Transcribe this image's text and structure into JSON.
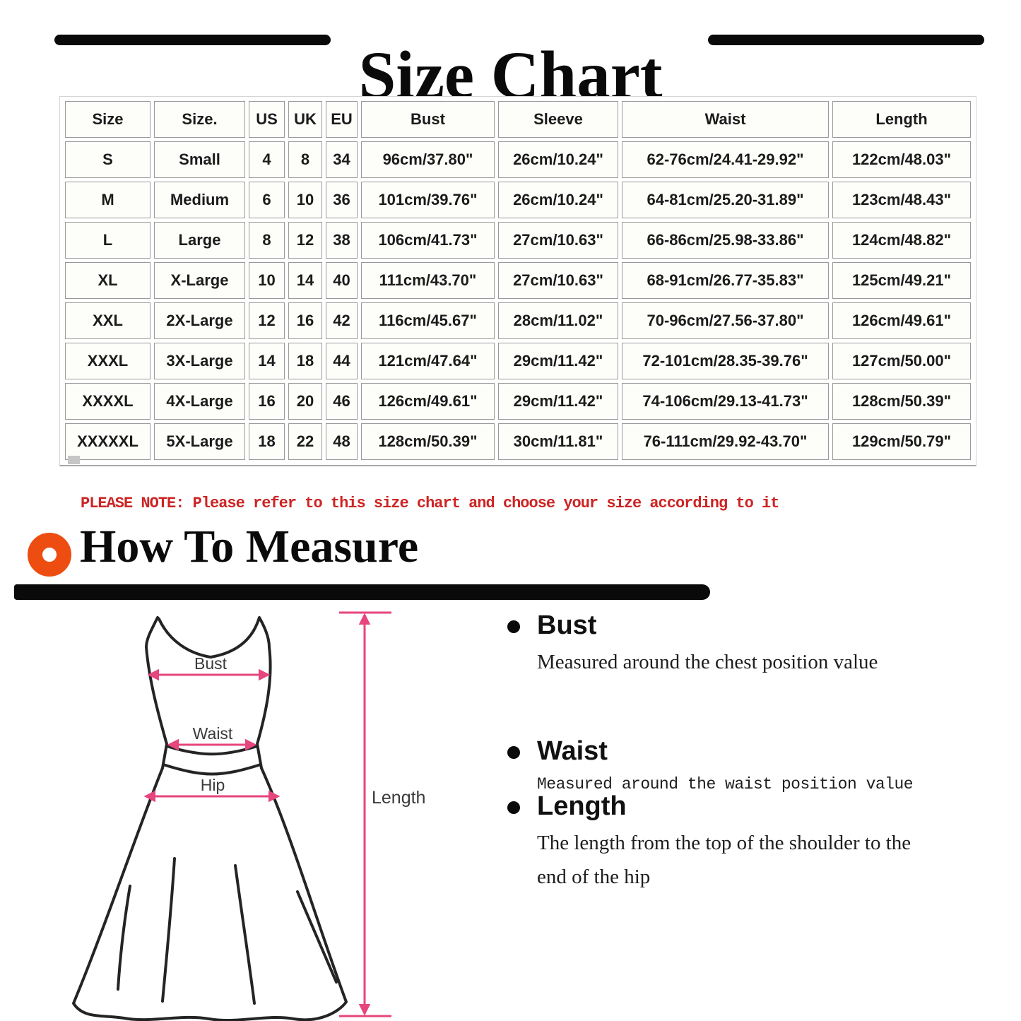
{
  "page": {
    "title": "Size Chart"
  },
  "table": {
    "columns": [
      "Size",
      "Size.",
      "US",
      "UK",
      "EU",
      "Bust",
      "Sleeve",
      "Waist",
      "Length"
    ],
    "rows": [
      [
        "S",
        "Small",
        "4",
        "8",
        "34",
        "96cm/37.80\"",
        "26cm/10.24\"",
        "62-76cm/24.41-29.92\"",
        "122cm/48.03\""
      ],
      [
        "M",
        "Medium",
        "6",
        "10",
        "36",
        "101cm/39.76\"",
        "26cm/10.24\"",
        "64-81cm/25.20-31.89\"",
        "123cm/48.43\""
      ],
      [
        "L",
        "Large",
        "8",
        "12",
        "38",
        "106cm/41.73\"",
        "27cm/10.63\"",
        "66-86cm/25.98-33.86\"",
        "124cm/48.82\""
      ],
      [
        "XL",
        "X-Large",
        "10",
        "14",
        "40",
        "111cm/43.70\"",
        "27cm/10.63\"",
        "68-91cm/26.77-35.83\"",
        "125cm/49.21\""
      ],
      [
        "XXL",
        "2X-Large",
        "12",
        "16",
        "42",
        "116cm/45.67\"",
        "28cm/11.02\"",
        "70-96cm/27.56-37.80\"",
        "126cm/49.61\""
      ],
      [
        "XXXL",
        "3X-Large",
        "14",
        "18",
        "44",
        "121cm/47.64\"",
        "29cm/11.42\"",
        "72-101cm/28.35-39.76\"",
        "127cm/50.00\""
      ],
      [
        "XXXXL",
        "4X-Large",
        "16",
        "20",
        "46",
        "126cm/49.61\"",
        "29cm/11.42\"",
        "74-106cm/29.13-41.73\"",
        "128cm/50.39\""
      ],
      [
        "XXXXXL",
        "5X-Large",
        "18",
        "22",
        "48",
        "128cm/50.39\"",
        "30cm/11.81\"",
        "76-111cm/29.92-43.70\"",
        "129cm/50.79\""
      ]
    ]
  },
  "note": {
    "text": "PLEASE NOTE: Please refer to this size chart and choose your size according to it"
  },
  "measure_section": {
    "title": "How To Measure",
    "items": [
      {
        "term": "Bust",
        "desc": "Measured around the chest position value",
        "style": "serif"
      },
      {
        "term": "Waist",
        "desc": "Measured around the waist position value",
        "style": "mono"
      },
      {
        "term": "Length",
        "desc": "The length from the top of the shoulder to the end of the hip",
        "style": "serif"
      }
    ]
  },
  "diagram": {
    "labels": {
      "bust": "Bust",
      "waist": "Waist",
      "hip": "Hip",
      "length": "Length"
    }
  },
  "colors": {
    "accent_orange": "#ee4d12",
    "measure_line_pink": "#e6457e",
    "note_red": "#cd2424",
    "ink_black": "#0a0a0a"
  }
}
